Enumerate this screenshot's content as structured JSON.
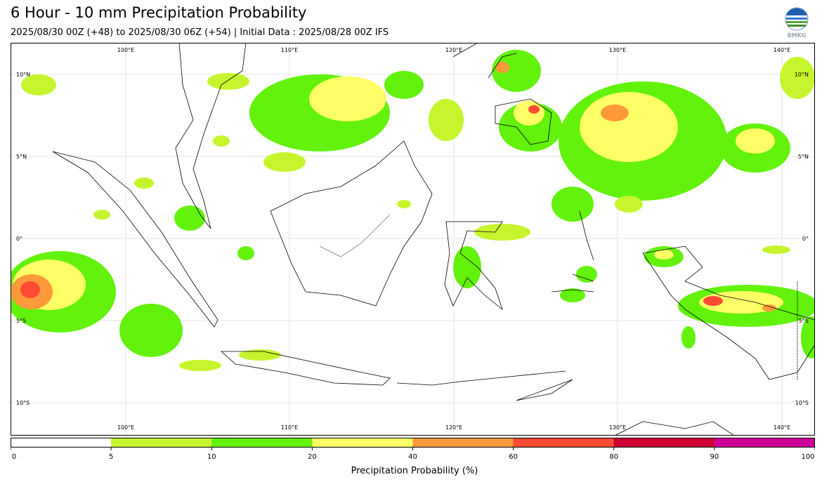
{
  "header": {
    "title": "6 Hour - 10 mm Precipitation Probability",
    "subtitle": "2025/08/30 00Z (+48) to 2025/08/30 06Z (+54) | Initial Data : 2025/08/28 00Z IFS",
    "logo_text": "BMKG"
  },
  "map": {
    "longitude_labels": [
      "100°E",
      "110°E",
      "120°E",
      "130°E",
      "140°E"
    ],
    "latitude_labels": [
      "10°N",
      "5°N",
      "0°",
      "5°S",
      "10°S"
    ],
    "extent": {
      "lon": [
        93,
        142
      ],
      "lat": [
        -12,
        11
      ]
    },
    "land_color": "#ffffff",
    "ocean_color": "#ffffff",
    "grid": true
  },
  "legend": {
    "label": "Precipitation Probability (%)",
    "ticks": [
      "0",
      "5",
      "10",
      "20",
      "40",
      "60",
      "80",
      "90",
      "100"
    ],
    "bins": [
      {
        "from": 0,
        "to": 5,
        "color": "#ffffff"
      },
      {
        "from": 5,
        "to": 10,
        "color": "#c6f52d"
      },
      {
        "from": 10,
        "to": 20,
        "color": "#63f20b"
      },
      {
        "from": 20,
        "to": 40,
        "color": "#ffff66"
      },
      {
        "from": 40,
        "to": 60,
        "color": "#ff9a3a"
      },
      {
        "from": 60,
        "to": 80,
        "color": "#ff4b33"
      },
      {
        "from": 80,
        "to": 90,
        "color": "#cc0033"
      },
      {
        "from": 90,
        "to": 100,
        "color": "#cc0099"
      }
    ]
  }
}
